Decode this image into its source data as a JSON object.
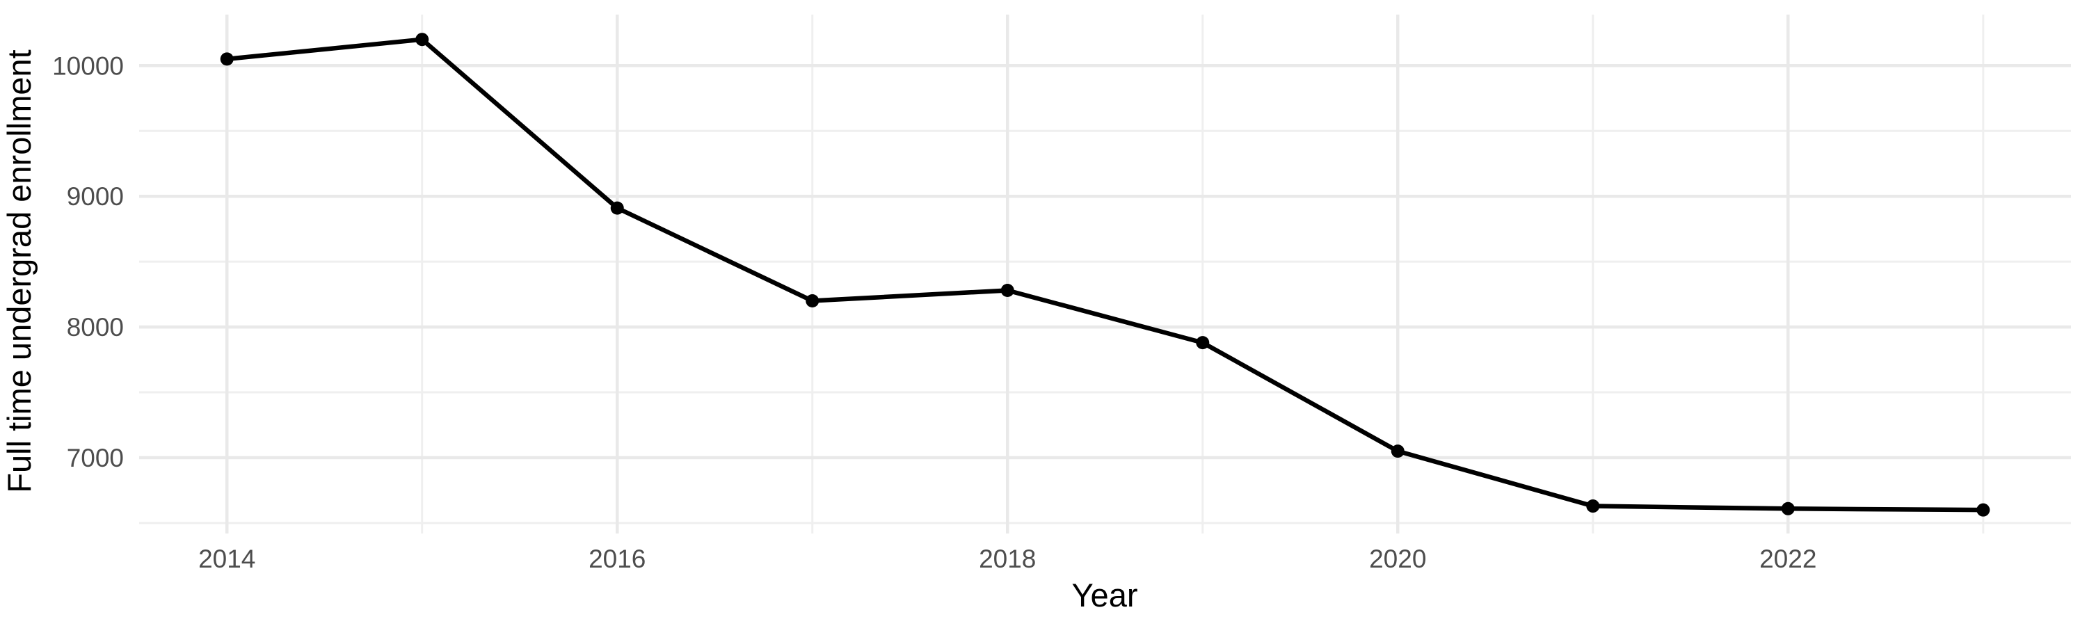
{
  "chart_data": {
    "type": "line",
    "title": "",
    "xlabel": "Year",
    "ylabel": "Full time undergrad enrollment",
    "series_name": "Full time undergrad enrollment",
    "x": [
      2014,
      2015,
      2016,
      2017,
      2018,
      2019,
      2020,
      2021,
      2022,
      2023
    ],
    "values": [
      10050,
      10200,
      8910,
      8200,
      8280,
      7880,
      7050,
      6630,
      6610,
      6600
    ],
    "xlim": [
      2013.55,
      2023.45
    ],
    "ylim": [
      6420,
      10390
    ],
    "x_major_ticks": [
      2014,
      2016,
      2018,
      2020,
      2022
    ],
    "x_minor_ticks": [
      2015,
      2017,
      2019,
      2021,
      2023
    ],
    "y_major_ticks": [
      7000,
      8000,
      9000,
      10000
    ],
    "y_minor_ticks": [
      6500,
      7500,
      8500,
      9500
    ],
    "grid": "major-and-minor",
    "legend_position": "none",
    "marker": "point"
  },
  "colors": {
    "background": "#ffffff",
    "grid_major": "#e9e9e9",
    "grid_minor": "#efefef",
    "tick_label": "#4d4d4d",
    "axis_title": "#000000",
    "line": "#000000",
    "point": "#000000"
  }
}
